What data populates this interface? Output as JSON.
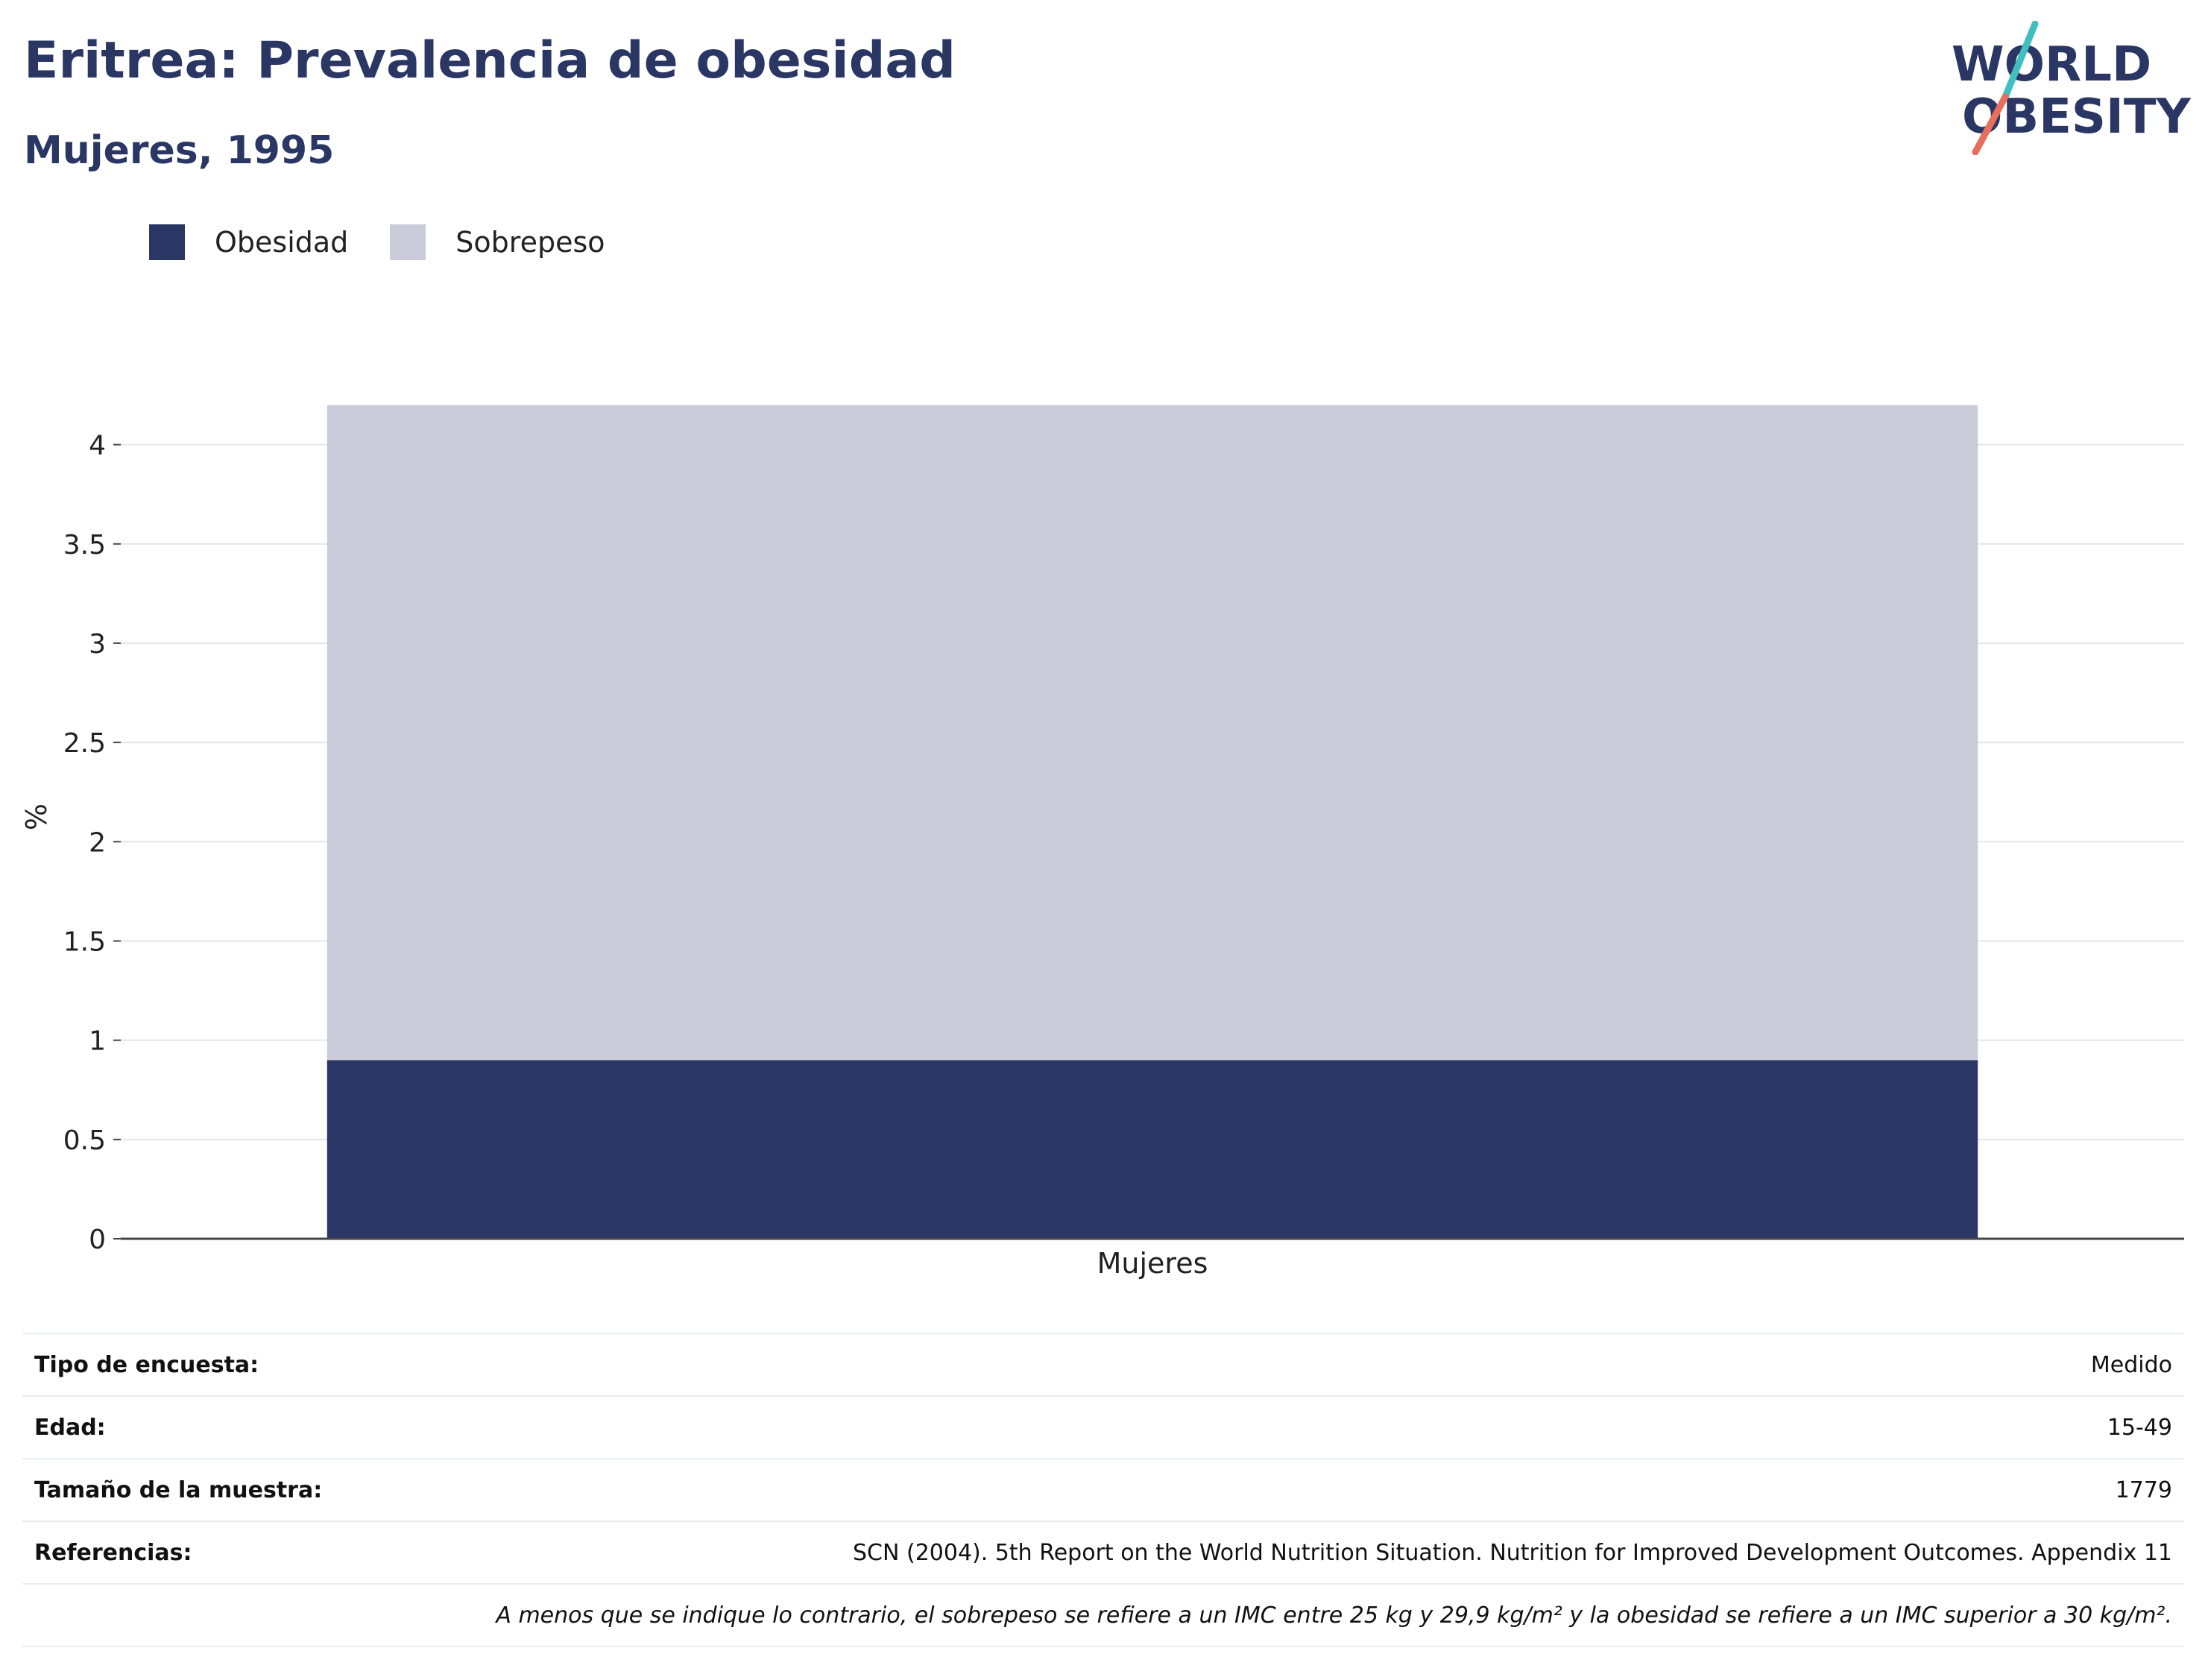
{
  "header": {
    "title": "Eritrea: Prevalencia de obesidad",
    "subtitle": "Mujeres, 1995"
  },
  "logo": {
    "line1": "WORLD",
    "line2": "OBESITY"
  },
  "colors": {
    "obesity": "#2a3663",
    "overweight": "#c9ccd8",
    "text": "#2a3663"
  },
  "chart_data": {
    "type": "bar",
    "stacked": true,
    "categories": [
      "Mujeres"
    ],
    "series": [
      {
        "name": "Obesidad",
        "values": [
          0.9
        ],
        "color": "#2a3663"
      },
      {
        "name": "Sobrepeso",
        "values": [
          3.3
        ],
        "color": "#c9ccd8"
      }
    ],
    "ylabel": "%",
    "ylim": [
      0,
      4.25
    ],
    "yticks": [
      0,
      0.5,
      1,
      1.5,
      2,
      2.5,
      3,
      3.5,
      4
    ],
    "ytick_labels": [
      "0",
      "0.5",
      "1",
      "1.5",
      "2",
      "2.5",
      "3",
      "3.5",
      "4"
    ],
    "grid": true,
    "legend": "top-left"
  },
  "info": {
    "rows": [
      {
        "key": "Tipo de encuesta:",
        "value": "Medido"
      },
      {
        "key": "Edad:",
        "value": "15-49"
      },
      {
        "key": "Tamaño de la muestra:",
        "value": "1779"
      },
      {
        "key": "Referencias:",
        "value": "SCN (2004). 5th Report on the World Nutrition Situation. Nutrition for Improved Development Outcomes. Appendix 11"
      }
    ],
    "note": "A menos que se indique lo contrario, el sobrepeso se refiere a un IMC entre 25 kg y 29,9 kg/m² y la obesidad se refiere a un IMC superior a 30 kg/m²."
  }
}
